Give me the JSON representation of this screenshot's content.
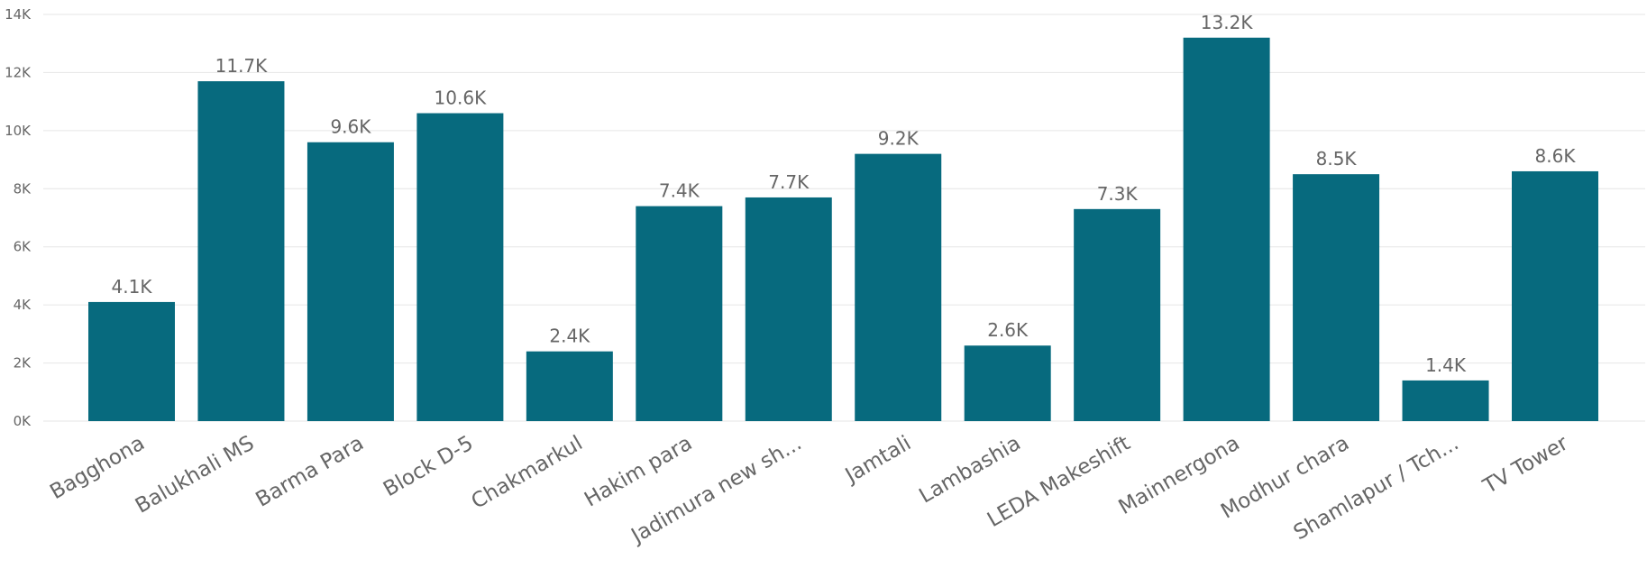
{
  "chart_data": {
    "type": "bar",
    "categories": [
      "Bagghona",
      "Balukhali MS",
      "Barma Para",
      "Block D-5",
      "Chakmarkul",
      "Hakim para",
      "Jadimura new sh...",
      "Jamtali",
      "Lambashia",
      "LEDA Makeshift",
      "Mainnergona",
      "Modhur chara",
      "Shamlapur / Tch...",
      "TV Tower"
    ],
    "values": [
      4100,
      11700,
      9600,
      10600,
      2400,
      7400,
      7700,
      9200,
      2600,
      7300,
      13200,
      8500,
      1400,
      8600
    ],
    "data_labels": [
      "4.1K",
      "11.7K",
      "9.6K",
      "10.6K",
      "2.4K",
      "7.4K",
      "7.7K",
      "9.2K",
      "2.6K",
      "7.3K",
      "13.2K",
      "8.5K",
      "1.4K",
      "8.6K"
    ],
    "y_ticks": [
      0,
      2000,
      4000,
      6000,
      8000,
      10000,
      12000,
      14000
    ],
    "y_tick_labels": [
      "0K",
      "2K",
      "4K",
      "6K",
      "8K",
      "10K",
      "12K",
      "14K"
    ],
    "ylim": [
      0,
      14000
    ],
    "grid": true,
    "bar_color": "#076A7E"
  }
}
